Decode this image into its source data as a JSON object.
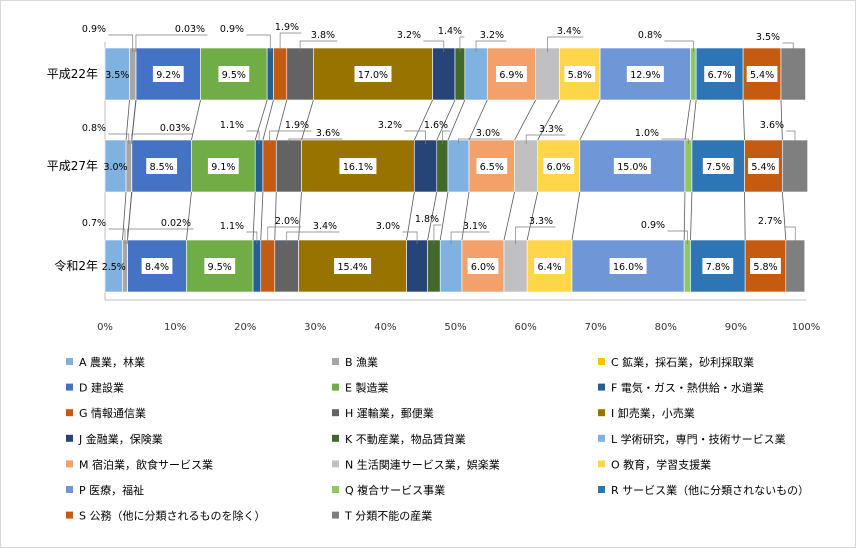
{
  "chart_data": {
    "type": "bar",
    "orientation": "horizontal",
    "stacked": "percent",
    "categories": [
      "平成22年",
      "平成27年",
      "令和2年"
    ],
    "xlim": [
      0,
      100
    ],
    "x_ticks": [
      "0%",
      "10%",
      "20%",
      "30%",
      "40%",
      "50%",
      "60%",
      "70%",
      "80%",
      "90%",
      "100%"
    ],
    "legend_position": "bottom",
    "series": [
      {
        "name": "A 農業，林業",
        "color": "#7fb2e0",
        "values": [
          3.5,
          3.0,
          2.5
        ]
      },
      {
        "name": "B 漁業",
        "color": "#a6a6a6",
        "values": [
          0.9,
          0.8,
          0.7
        ]
      },
      {
        "name": "C 鉱業，採石業，砂利採取業",
        "color": "#ffc000",
        "values": [
          0.03,
          0.03,
          0.02
        ]
      },
      {
        "name": "D 建設業",
        "color": "#4472c4",
        "values": [
          9.2,
          8.5,
          8.4
        ]
      },
      {
        "name": "E 製造業",
        "color": "#70ad47",
        "values": [
          9.5,
          9.1,
          9.5
        ]
      },
      {
        "name": "F 電気・ガス・熱供給・水道業",
        "color": "#255e91",
        "values": [
          0.9,
          1.1,
          1.1
        ]
      },
      {
        "name": "G 情報通信業",
        "color": "#c55a11",
        "values": [
          1.9,
          1.9,
          2.0
        ]
      },
      {
        "name": "H 運輸業，郵便業",
        "color": "#636363",
        "values": [
          3.8,
          3.6,
          3.4
        ]
      },
      {
        "name": "I 卸売業，小売業",
        "color": "#997300",
        "values": [
          17.0,
          16.1,
          15.4
        ]
      },
      {
        "name": "J 金融業，保険業",
        "color": "#264478",
        "values": [
          3.2,
          3.2,
          3.0
        ]
      },
      {
        "name": "K 不動産業，物品賃貸業",
        "color": "#43682b",
        "values": [
          1.4,
          1.6,
          1.8
        ]
      },
      {
        "name": "L 学術研究，専門・技術サービス業",
        "color": "#7fb2e0",
        "values": [
          3.2,
          3.0,
          3.1
        ]
      },
      {
        "name": "M 宿泊業，飲食サービス業",
        "color": "#f4a06a",
        "values": [
          6.9,
          6.5,
          6.0
        ]
      },
      {
        "name": "N 生活関連サービス業，娯楽業",
        "color": "#c0c0c0",
        "values": [
          3.4,
          3.3,
          3.3
        ]
      },
      {
        "name": "O 教育，学習支援業",
        "color": "#ffd54a",
        "values": [
          5.8,
          6.0,
          6.4
        ]
      },
      {
        "name": "P 医療，福祉",
        "color": "#6f97d8",
        "values": [
          12.9,
          15.0,
          16.0
        ]
      },
      {
        "name": "Q 複合サービス事業",
        "color": "#92c563",
        "values": [
          0.8,
          1.0,
          0.9
        ]
      },
      {
        "name": "R サービス業（他に分類されないもの）",
        "color": "#2e75b6",
        "values": [
          6.7,
          7.5,
          7.8
        ]
      },
      {
        "name": "S 公務（他に分類されるものを除く）",
        "color": "#c55a11",
        "values": [
          5.4,
          5.4,
          5.8
        ]
      },
      {
        "name": "T 分類不能の産業",
        "color": "#7f7f7f",
        "values": [
          3.5,
          3.6,
          2.7
        ]
      }
    ],
    "data_labels": [
      [
        "3.5%",
        "0.9%",
        "0.03%",
        "9.2%",
        "9.5%",
        "0.9%",
        "1.9%",
        "3.8%",
        "17.0%",
        "3.2%",
        "1.4%",
        "3.2%",
        "6.9%",
        "3.4%",
        "5.8%",
        "12.9%",
        "0.8%",
        "6.7%",
        "5.4%",
        "3.5%"
      ],
      [
        "3.0%",
        "0.8%",
        "0.03%",
        "8.5%",
        "9.1%",
        "1.1%",
        "1.9%",
        "3.6%",
        "16.1%",
        "3.2%",
        "1.6%",
        "3.0%",
        "6.5%",
        "3.3%",
        "6.0%",
        "15.0%",
        "1.0%",
        "7.5%",
        "5.4%",
        "3.6%"
      ],
      [
        "2.5%",
        "0.7%",
        "0.02%",
        "8.4%",
        "9.5%",
        "1.1%",
        "2.0%",
        "3.4%",
        "15.4%",
        "3.0%",
        "1.8%",
        "3.1%",
        "6.0%",
        "3.3%",
        "6.4%",
        "16.0%",
        "0.9%",
        "7.8%",
        "5.8%",
        "2.7%"
      ]
    ]
  }
}
